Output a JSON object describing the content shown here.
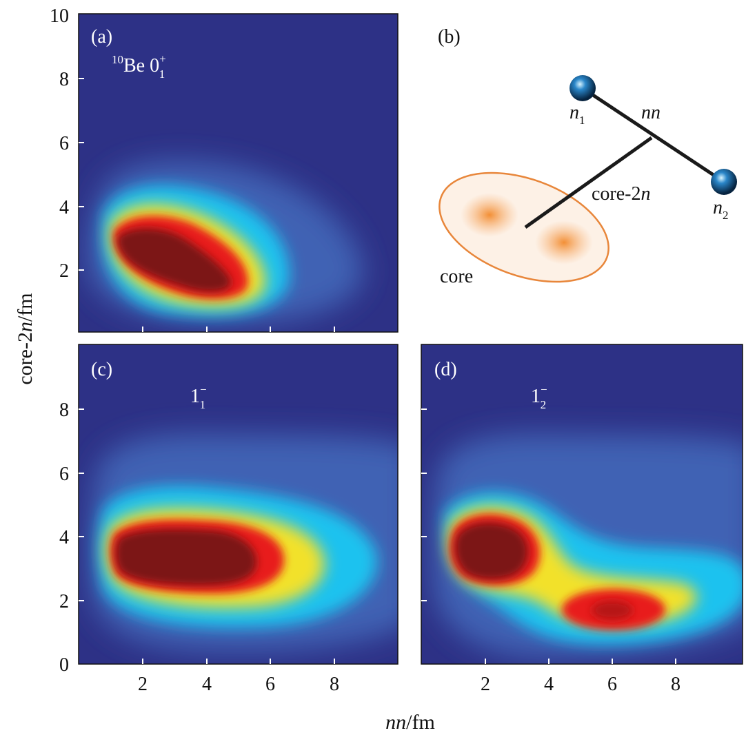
{
  "figure": {
    "xlabel_italic": "nn",
    "xlabel_rest": "/fm",
    "ylabel_pre": "core-2",
    "ylabel_italic": "n",
    "ylabel_rest": "/fm"
  },
  "panel_b": {
    "label": "(b)",
    "n1_main": "n",
    "n1_sub": "1",
    "n2_main": "n",
    "n2_sub": "2",
    "nn_text": "nn",
    "core2n_pre": "core-2",
    "core2n_italic": "n",
    "core_text": "core"
  },
  "chart_data": [
    {
      "type": "heatmap",
      "panel": "(a)",
      "state": {
        "base": "Be 0",
        "sup_left": "10",
        "sup": "+",
        "sub": "1"
      },
      "xlim": [
        0,
        10
      ],
      "ylim": [
        0,
        10
      ],
      "yticks": [
        "2",
        "4",
        "6",
        "8",
        "10"
      ],
      "blobs": [
        {
          "x": 2.4,
          "y": 2.4,
          "level": 1.0
        },
        {
          "x": 3.9,
          "y": 1.6,
          "level": 0.95
        }
      ],
      "halo_extent": {
        "x": [
          0.5,
          9.0
        ],
        "y": [
          0.5,
          5.4
        ]
      }
    },
    {
      "type": "heatmap",
      "panel": "(c)",
      "state": {
        "base": "1",
        "sup": "−",
        "sub": "1"
      },
      "xlim": [
        0,
        10
      ],
      "ylim": [
        0,
        10
      ],
      "xticks": [
        "2",
        "4",
        "6",
        "8"
      ],
      "yticks": [
        "0",
        "2",
        "4",
        "6",
        "8"
      ],
      "blobs": [
        {
          "x": 2.8,
          "y": 3.2,
          "level": 1.0
        },
        {
          "x": 4.5,
          "y": 3.0,
          "level": 0.95
        }
      ],
      "halo_extent": {
        "x": [
          0.5,
          10
        ],
        "y": [
          0.4,
          7.2
        ]
      }
    },
    {
      "type": "heatmap",
      "panel": "(d)",
      "state": {
        "base": "1",
        "sup": "−",
        "sub": "2"
      },
      "xlim": [
        0,
        10
      ],
      "ylim": [
        0,
        10
      ],
      "xticks": [
        "2",
        "4",
        "6",
        "8"
      ],
      "blobs": [
        {
          "x": 2.3,
          "y": 3.2,
          "level": 1.0
        },
        {
          "x": 6.0,
          "y": 1.6,
          "level": 0.85
        }
      ],
      "halo_extent": {
        "x": [
          0.5,
          10
        ],
        "y": [
          0.6,
          7.2
        ]
      }
    }
  ]
}
